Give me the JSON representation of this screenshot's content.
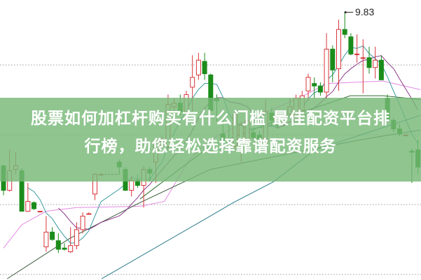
{
  "banner": {
    "line1": "股票如何加杠杆购买有什么门槛 最佳配资平台排",
    "line2": "行榜，助您轻松选择靠谱配资服务"
  },
  "chart_data": {
    "type": "candlestick",
    "ylim": [
      7.65,
      9.93
    ],
    "grid": true,
    "high_annotation": {
      "index": 56,
      "value": "9.83"
    },
    "colors": {
      "up": "#d9353a",
      "down": "#1b8c1b",
      "ma5": "#3a9aa0",
      "ma10": "#8a3a8a",
      "pink": "#e28ae2",
      "dark_green": "#2b6b2b",
      "olive": "#3d5a3d",
      "teal_long": "#2a7a8c",
      "grid": "#9a9a9a",
      "banner": "#8fc48f"
    },
    "candles": [
      [
        8.58,
        8.59,
        8.34,
        8.38
      ],
      [
        8.38,
        8.71,
        8.37,
        8.54
      ],
      [
        8.55,
        8.69,
        8.51,
        8.58
      ],
      [
        8.54,
        8.56,
        8.21,
        8.21
      ],
      [
        8.21,
        8.44,
        8.21,
        8.29
      ],
      [
        8.28,
        8.29,
        8.22,
        8.23
      ],
      [
        8.21,
        8.21,
        8.2,
        8.21
      ],
      [
        7.92,
        8.17,
        7.88,
        8.04
      ],
      [
        8.04,
        8.08,
        7.97,
        7.98
      ],
      [
        7.97,
        8.03,
        7.87,
        7.9
      ],
      [
        7.91,
        7.95,
        7.89,
        7.9
      ],
      [
        7.88,
        8.08,
        7.87,
        7.93
      ],
      [
        7.93,
        8.12,
        7.9,
        8.06
      ],
      [
        8.06,
        8.2,
        8.03,
        8.17
      ],
      [
        8.19,
        8.2,
        8.19,
        8.19
      ],
      [
        8.35,
        8.52,
        8.3,
        8.51
      ],
      [
        8.51,
        8.52,
        8.51,
        8.51
      ],
      null,
      null,
      [
        8.61,
        8.63,
        8.51,
        8.57
      ],
      [
        8.55,
        8.57,
        8.38,
        8.38
      ],
      [
        8.38,
        8.5,
        8.33,
        8.46
      ],
      [
        8.46,
        8.51,
        8.4,
        8.42
      ],
      [
        8.42,
        8.58,
        8.24,
        8.55
      ],
      [
        8.55,
        8.57,
        8.45,
        8.52
      ],
      [
        8.61,
        8.79,
        8.44,
        8.77
      ],
      [
        8.75,
        8.82,
        8.74,
        8.78
      ],
      [
        8.74,
        9.16,
        8.71,
        9.08
      ],
      [
        9.06,
        9.13,
        9.02,
        9.09
      ],
      [
        9.09,
        9.16,
        8.99,
        9.02
      ],
      [
        9.02,
        9.19,
        8.96,
        9.16
      ],
      [
        9.22,
        9.48,
        9.02,
        9.3
      ],
      [
        9.32,
        9.5,
        9.28,
        9.44
      ],
      [
        9.43,
        9.5,
        9.28,
        9.33
      ],
      [
        9.32,
        9.33,
        9.02,
        9.03
      ],
      [
        9.13,
        9.16,
        8.94,
        9.11
      ],
      [
        8.84,
        8.96,
        8.77,
        8.79
      ],
      [
        8.79,
        8.91,
        8.73,
        8.75
      ],
      [
        8.74,
        9.02,
        8.71,
        9.0
      ],
      [
        8.74,
        8.94,
        8.61,
        8.91
      ],
      [
        8.75,
        8.99,
        8.74,
        8.95
      ],
      [
        8.85,
        8.88,
        8.79,
        8.81
      ],
      [
        8.83,
        8.86,
        8.77,
        8.79
      ],
      [
        8.75,
        9.12,
        8.74,
        9.02
      ],
      [
        9.01,
        9.05,
        8.91,
        8.95
      ],
      [
        8.94,
        8.96,
        8.88,
        8.91
      ],
      [
        8.92,
        9.02,
        8.9,
        8.99
      ],
      [
        9.0,
        9.13,
        8.99,
        9.06
      ],
      [
        8.98,
        9.16,
        8.96,
        9.13
      ],
      [
        9.03,
        9.19,
        9.02,
        9.15
      ],
      [
        9.19,
        9.33,
        9.11,
        9.3
      ],
      [
        9.25,
        9.3,
        9.13,
        9.23
      ],
      [
        9.23,
        9.26,
        9.15,
        9.18
      ],
      [
        9.18,
        9.66,
        9.12,
        9.53
      ],
      [
        9.53,
        9.56,
        9.26,
        9.36
      ],
      [
        9.37,
        9.77,
        9.19,
        9.69
      ],
      [
        9.69,
        9.83,
        9.62,
        9.65
      ],
      [
        9.63,
        9.66,
        9.48,
        9.49
      ],
      [
        9.49,
        9.65,
        9.42,
        9.49
      ],
      [
        9.46,
        9.61,
        9.17,
        9.46
      ],
      [
        9.46,
        9.55,
        9.33,
        9.38
      ],
      [
        9.38,
        9.55,
        9.29,
        9.44
      ],
      [
        9.44,
        9.48,
        9.28,
        9.28
      ],
      [
        9.13,
        9.16,
        8.96,
        8.96
      ],
      [
        8.95,
        8.97,
        8.85,
        8.88
      ],
      [
        8.88,
        8.92,
        8.82,
        8.84
      ],
      [
        8.83,
        8.84,
        8.82,
        8.83
      ],
      [
        8.7,
        8.72,
        8.44,
        8.69
      ],
      [
        8.71,
        8.79,
        8.51,
        8.57
      ]
    ],
    "candle_format": [
      "open",
      "high",
      "low",
      "close"
    ],
    "long_lines": [
      {
        "key": "pink",
        "points": [
          [
            0,
            7.91
          ],
          [
            3,
            8.1
          ],
          [
            7,
            8.21
          ],
          [
            12,
            8.24
          ],
          [
            22.4,
            8.25
          ],
          [
            26.4,
            8.29
          ],
          [
            28.2,
            8.44
          ],
          [
            30.5,
            8.63
          ],
          [
            33.9,
            8.79
          ],
          [
            39.7,
            8.94
          ],
          [
            49.2,
            9.15
          ],
          [
            53.1,
            9.25
          ],
          [
            62.3,
            9.27
          ],
          [
            68.4,
            9.2
          ]
        ]
      },
      {
        "key": "dark_green",
        "points": [
          [
            22.4,
            8.31
          ],
          [
            33.9,
            8.74
          ],
          [
            45.4,
            8.96
          ],
          [
            53.4,
            9.09
          ],
          [
            56.9,
            9.15
          ],
          [
            62.3,
            9.15
          ],
          [
            68.4,
            9.12
          ]
        ]
      },
      {
        "key": "olive",
        "points": [
          [
            0.6,
            7.66
          ],
          [
            10.9,
            7.99
          ],
          [
            22.4,
            8.28
          ],
          [
            33.9,
            8.55
          ],
          [
            53.1,
            8.74
          ],
          [
            60.7,
            8.81
          ],
          [
            68.4,
            8.87
          ]
        ]
      },
      {
        "key": "teal_long",
        "points": [
          [
            16.1,
            7.66
          ],
          [
            33.9,
            8.17
          ],
          [
            37.7,
            8.28
          ],
          [
            44.3,
            8.45
          ],
          [
            51.1,
            8.71
          ],
          [
            68.4,
            8.99
          ]
        ]
      }
    ]
  }
}
